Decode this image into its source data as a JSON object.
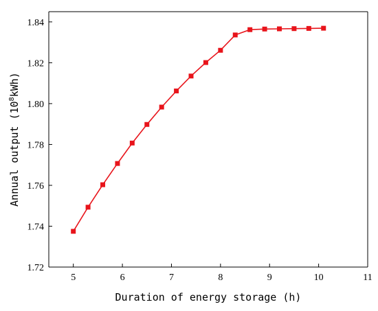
{
  "chart_data": {
    "type": "line",
    "title": "",
    "xlabel": "Duration of energy storage (h)",
    "ylabel_main": "Annual output (10",
    "ylabel_sup": "8",
    "ylabel_unit": "kWh)",
    "xlim": [
      4.5,
      11
    ],
    "ylim": [
      1.72,
      1.845
    ],
    "xticks": [
      5,
      6,
      7,
      8,
      9,
      10,
      11
    ],
    "yticks": [
      1.72,
      1.74,
      1.76,
      1.78,
      1.8,
      1.82,
      1.84
    ],
    "ytick_labels": [
      "1.72",
      "1.74",
      "1.76",
      "1.78",
      "1.80",
      "1.82",
      "1.84"
    ],
    "grid": false,
    "series": [
      {
        "color": "#e8141b",
        "marker": "square",
        "x": [
          5.0,
          5.3,
          5.6,
          5.9,
          6.2,
          6.5,
          6.8,
          7.1,
          7.4,
          7.7,
          8.0,
          8.3,
          8.6,
          8.9,
          9.2,
          9.5,
          9.8,
          10.1
        ],
        "y": [
          1.7375,
          1.7493,
          1.7603,
          1.7707,
          1.7807,
          1.7898,
          1.7983,
          1.8062,
          1.8135,
          1.8201,
          1.8261,
          1.8336,
          1.8362,
          1.8365,
          1.8366,
          1.8367,
          1.8368,
          1.8369
        ]
      }
    ]
  }
}
